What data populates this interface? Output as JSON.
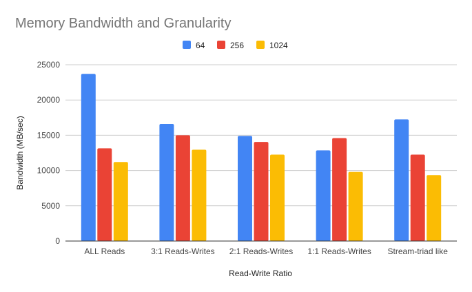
{
  "chart_data": {
    "type": "bar",
    "title": "Memory Bandwidth and Granularity",
    "xlabel": "Read-Write Ratio",
    "ylabel": "Bandwidth (MB/sec)",
    "categories": [
      "ALL Reads",
      "3:1 Reads-Writes",
      "2:1 Reads-Writes",
      "1:1 Reads-Writes",
      "Stream-triad like"
    ],
    "ylim": [
      0,
      25000
    ],
    "yticks": [
      "0",
      "5000",
      "10000",
      "15000",
      "20000",
      "25000"
    ],
    "grid": true,
    "legend_position": "top-center",
    "series": [
      {
        "name": "64",
        "color": "#4285f4",
        "values": [
          23700,
          16600,
          14900,
          12850,
          17250
        ]
      },
      {
        "name": "256",
        "color": "#ea4335",
        "values": [
          13150,
          15000,
          14050,
          14600,
          12250
        ]
      },
      {
        "name": "1024",
        "color": "#fbbc04",
        "values": [
          11200,
          12950,
          12250,
          9800,
          9350
        ]
      }
    ]
  }
}
